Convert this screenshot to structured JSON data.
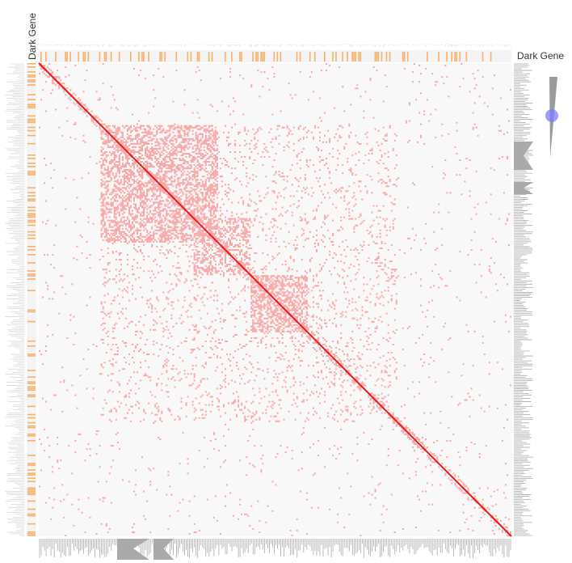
{
  "labels": {
    "column_annotation": "Dark Gene",
    "row_annotation": "Dark Gene"
  }
}
